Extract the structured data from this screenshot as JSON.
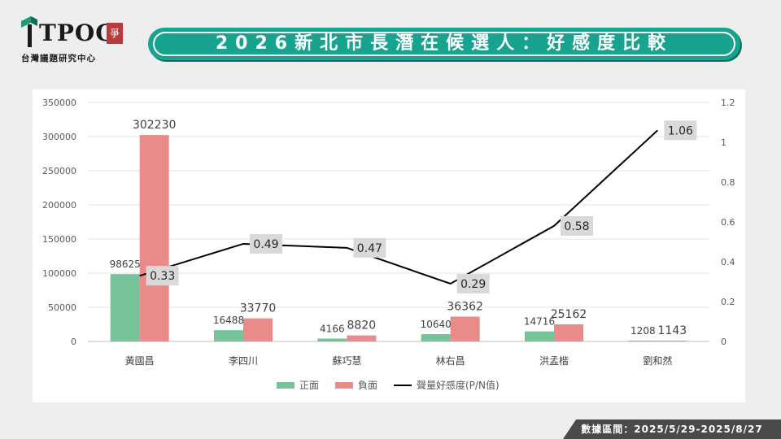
{
  "logo": {
    "text": "TPOC",
    "badge": "爭",
    "subtitle": "台灣議題研究中心"
  },
  "title": "2026新北市長潛在候選人：好感度比較",
  "footer": "數據區間：2025/5/29-2025/8/27",
  "colors": {
    "positive": "#77c399",
    "negative": "#ea8b8b",
    "ratio": "#000000",
    "accent": "#17a38d"
  },
  "chart_data": {
    "type": "bar",
    "categories": [
      "黃國昌",
      "李四川",
      "蘇巧慧",
      "林右昌",
      "洪孟楷",
      "劉和然"
    ],
    "series": [
      {
        "name": "正面",
        "type": "bar",
        "axis": "left",
        "values": [
          98625,
          16488,
          4166,
          10640,
          14716,
          1208
        ]
      },
      {
        "name": "負面",
        "type": "bar",
        "axis": "left",
        "values": [
          302230,
          33770,
          8820,
          36362,
          25162,
          1143
        ]
      },
      {
        "name": "聲量好感度(P/N值)",
        "type": "line",
        "axis": "right",
        "values": [
          0.33,
          0.49,
          0.47,
          0.29,
          0.58,
          1.06
        ]
      }
    ],
    "y_left": {
      "min": 0,
      "max": 350000,
      "ticks": [
        0,
        50000,
        100000,
        150000,
        200000,
        250000,
        300000,
        350000
      ]
    },
    "y_right": {
      "min": 0,
      "max": 1.2,
      "ticks": [
        "0",
        "0.2",
        "0.4",
        "0.6",
        "0.8",
        "1",
        "1.2"
      ]
    },
    "grid": true,
    "legend_position": "bottom"
  }
}
